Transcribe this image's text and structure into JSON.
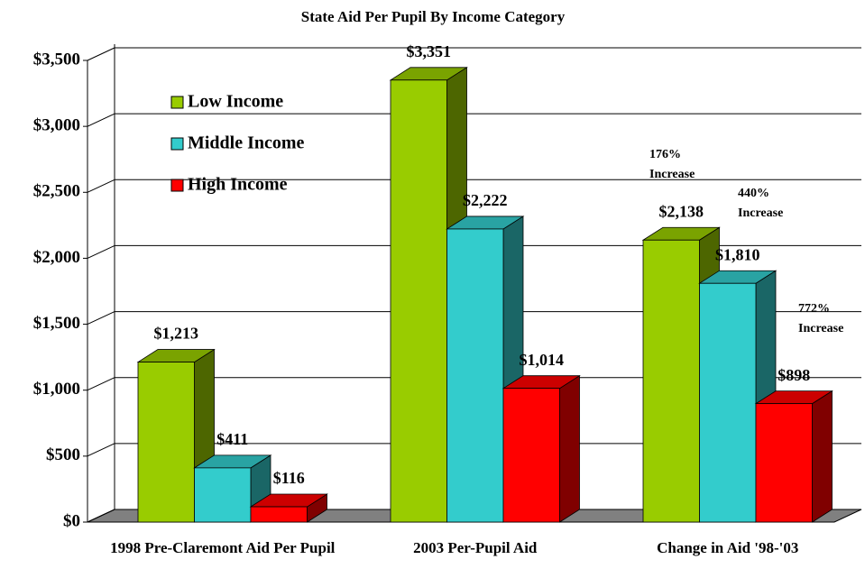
{
  "chart_data": {
    "type": "bar3d",
    "title": "State Aid Per Pupil By Income Category",
    "categories": [
      "1998 Pre-Claremont Aid Per Pupil",
      "2003 Per-Pupil Aid",
      "Change in Aid '98-'03"
    ],
    "series": [
      {
        "name": "Low Income",
        "color": "#99cc00",
        "values": [
          1213,
          3351,
          2138
        ],
        "value_labels": [
          "$1,213",
          "$3,351",
          "$2,138"
        ]
      },
      {
        "name": "Middle Income",
        "color": "#33cccc",
        "values": [
          411,
          2222,
          1810
        ],
        "value_labels": [
          "$411",
          "$2,222",
          "$1,810"
        ]
      },
      {
        "name": "High Income",
        "color": "#ff0000",
        "values": [
          116,
          1014,
          898
        ],
        "value_labels": [
          "$116",
          "$1,014",
          "$898"
        ]
      }
    ],
    "ylim": [
      0,
      3500
    ],
    "yticks": [
      {
        "value": 0,
        "label": "$0"
      },
      {
        "value": 500,
        "label": "$500"
      },
      {
        "value": 1000,
        "label": "$1,000"
      },
      {
        "value": 1500,
        "label": "$1,500"
      },
      {
        "value": 2000,
        "label": "$2,000"
      },
      {
        "value": 2500,
        "label": "$2,500"
      },
      {
        "value": 3000,
        "label": "$3,000"
      },
      {
        "value": 3500,
        "label": "$3,500"
      }
    ],
    "grid": true,
    "annotations": [
      {
        "text": "176% Increase"
      },
      {
        "text": "440% Increase"
      },
      {
        "text": "772% Increase"
      }
    ]
  }
}
